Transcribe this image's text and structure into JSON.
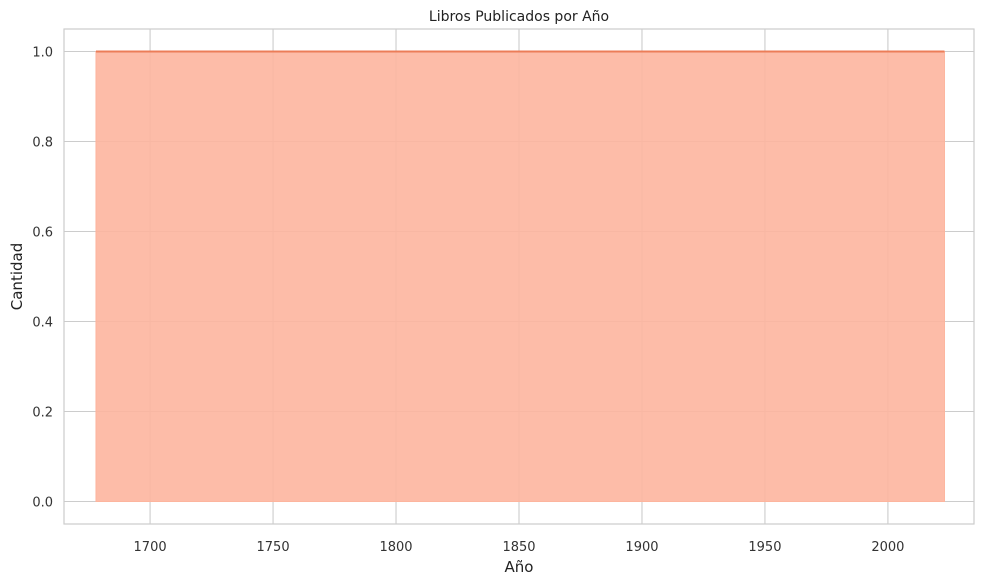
{
  "chart_data": {
    "type": "area",
    "title": "Libros Publicados por Año",
    "xlabel": "Año",
    "ylabel": "Cantidad",
    "x": [
      1678,
      2023
    ],
    "y": [
      1,
      1
    ],
    "xlim": [
      1665,
      2035
    ],
    "ylim": [
      -0.05,
      1.05
    ],
    "xticks": [
      1700,
      1750,
      1800,
      1850,
      1900,
      1950,
      2000
    ],
    "yticks": [
      0.0,
      0.2,
      0.4,
      0.6,
      0.8,
      1.0
    ],
    "xtick_labels": [
      "1700",
      "1750",
      "1800",
      "1850",
      "1900",
      "1950",
      "2000"
    ],
    "ytick_labels": [
      "0.0",
      "0.2",
      "0.4",
      "0.6",
      "0.8",
      "1.0"
    ],
    "grid": true,
    "fill_color": "#fdb59e",
    "line_color": "#ec7d58",
    "grid_color": "#cccccc"
  }
}
